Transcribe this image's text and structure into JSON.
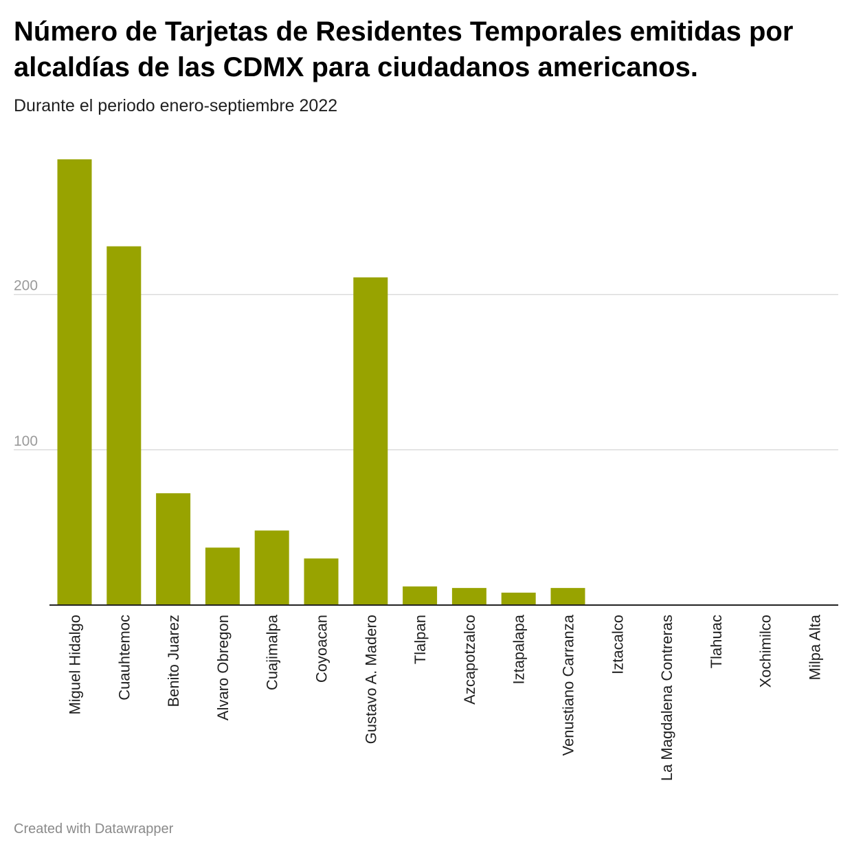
{
  "chart_data": {
    "type": "bar",
    "title": "Número de Tarjetas de Residentes Temporales emitidas por alcaldías de las CDMX para ciudadanos americanos.",
    "subtitle": "Durante el periodo enero-septiembre 2022",
    "categories": [
      "Miguel Hidalgo",
      "Cuauhtemoc",
      "Benito Juarez",
      "Alvaro Obregon",
      "Cuajimalpa",
      "Coyoacan",
      "Gustavo A. Madero",
      "Tlalpan",
      "Azcapotzalco",
      "Iztapalapa",
      "Venustiano Carranza",
      "Iztacalco",
      "La Magdalena Contreras",
      "Tlahuac",
      "Xochimilco",
      "Milpa Alta"
    ],
    "values": [
      287,
      231,
      72,
      37,
      48,
      30,
      211,
      12,
      11,
      8,
      11,
      0,
      0,
      0,
      0,
      0
    ],
    "ylim": [
      0,
      287
    ],
    "yticks": [
      "100",
      "200"
    ],
    "grid": true,
    "bar_color": "#98a300",
    "xlabel": "",
    "ylabel": ""
  },
  "footer": "Created with Datawrapper"
}
